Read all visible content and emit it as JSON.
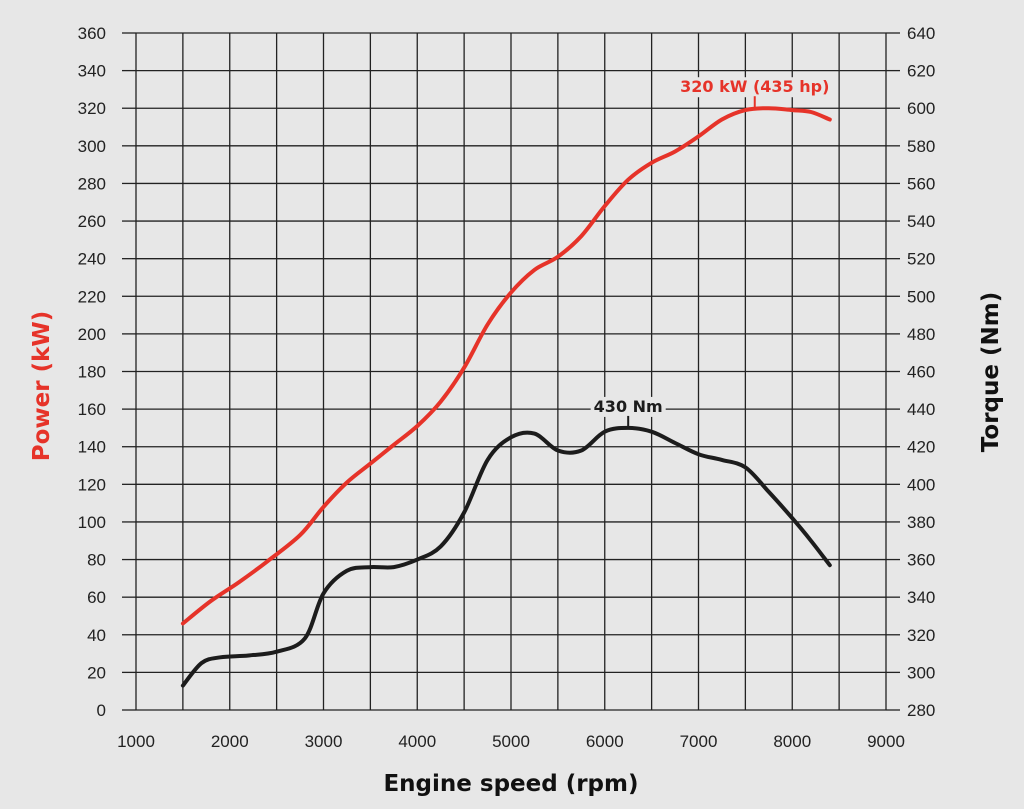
{
  "chart_data": {
    "type": "line",
    "title": "",
    "xlabel": "Engine speed (rpm)",
    "ylabel_left": "Power (kW)",
    "ylabel_right": "Torque (Nm)",
    "xlim": [
      1000,
      9000
    ],
    "ylim_left": [
      0,
      360
    ],
    "ylim_right": [
      280,
      640
    ],
    "x_ticks": [
      1000,
      2000,
      3000,
      4000,
      5000,
      6000,
      7000,
      8000,
      9000
    ],
    "y_left_ticks": [
      0,
      20,
      40,
      60,
      80,
      100,
      120,
      140,
      160,
      180,
      200,
      220,
      240,
      260,
      280,
      300,
      320,
      340,
      360
    ],
    "y_right_ticks": [
      280,
      300,
      320,
      340,
      360,
      380,
      400,
      420,
      440,
      460,
      480,
      500,
      520,
      540,
      560,
      580,
      600,
      620,
      640
    ],
    "grid": true,
    "series": [
      {
        "name": "Power",
        "axis": "left",
        "color": "#e63329",
        "x": [
          1500,
          1800,
          2100,
          2400,
          2750,
          3000,
          3250,
          3500,
          3750,
          4000,
          4250,
          4500,
          4750,
          5000,
          5250,
          5500,
          5750,
          6000,
          6250,
          6500,
          6750,
          7000,
          7250,
          7500,
          7750,
          8000,
          8200,
          8400
        ],
        "y": [
          46,
          58,
          68,
          79,
          93,
          108,
          121,
          131,
          141,
          151,
          164,
          182,
          205,
          222,
          234,
          241,
          252,
          268,
          282,
          291,
          297,
          305,
          314,
          319,
          320,
          319,
          318,
          314
        ]
      },
      {
        "name": "Torque",
        "axis": "right",
        "color": "#1c1c1c",
        "x": [
          1500,
          1700,
          1900,
          2200,
          2500,
          2800,
          3000,
          3250,
          3500,
          3750,
          4000,
          4250,
          4500,
          4750,
          5000,
          5250,
          5500,
          5750,
          6000,
          6250,
          6500,
          6750,
          7000,
          7250,
          7500,
          7750,
          8000,
          8200,
          8400
        ],
        "y": [
          293,
          305,
          308,
          309,
          311,
          318,
          342,
          354,
          356,
          356,
          360,
          367,
          385,
          413,
          425,
          427,
          418,
          418,
          428,
          430,
          428,
          422,
          416,
          413,
          409,
          396,
          382,
          370,
          357
        ]
      }
    ],
    "annotations": [
      {
        "text": "320 kW (435 hp)",
        "series": "Power",
        "x": 7600,
        "y": 320,
        "color": "#e63329"
      },
      {
        "text": "430 Nm",
        "series": "Torque",
        "x": 6250,
        "y": 430,
        "color": "#1c1c1c"
      }
    ]
  }
}
